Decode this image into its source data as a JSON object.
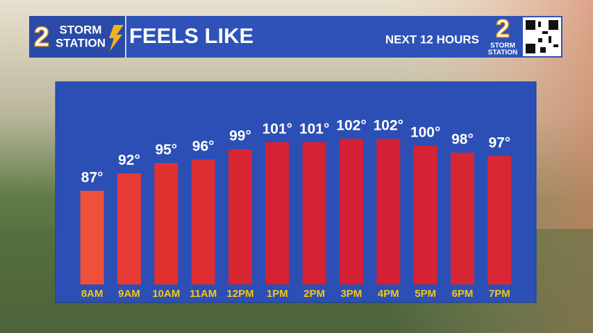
{
  "branding": {
    "number": "2",
    "line1": "STORM",
    "line2": "STATION"
  },
  "chart_data": {
    "type": "bar",
    "title": "FEELS LIKE",
    "subtitle": "NEXT 12 HOURS",
    "categories": [
      "8AM",
      "9AM",
      "10AM",
      "11AM",
      "12PM",
      "1PM",
      "2PM",
      "3PM",
      "4PM",
      "5PM",
      "6PM",
      "7PM"
    ],
    "values": [
      87,
      92,
      95,
      96,
      99,
      101,
      101,
      102,
      102,
      100,
      98,
      97
    ],
    "value_labels": [
      "87°",
      "92°",
      "95°",
      "96°",
      "99°",
      "101°",
      "101°",
      "102°",
      "102°",
      "100°",
      "98°",
      "97°"
    ],
    "colors": [
      "#ef5039",
      "#e63b35",
      "#e0312f",
      "#dc2d31",
      "#d72532",
      "#d42233",
      "#d42233",
      "#d32034",
      "#d32034",
      "#d52333",
      "#d72633",
      "#d92833"
    ],
    "ylim": [
      60,
      110
    ]
  }
}
